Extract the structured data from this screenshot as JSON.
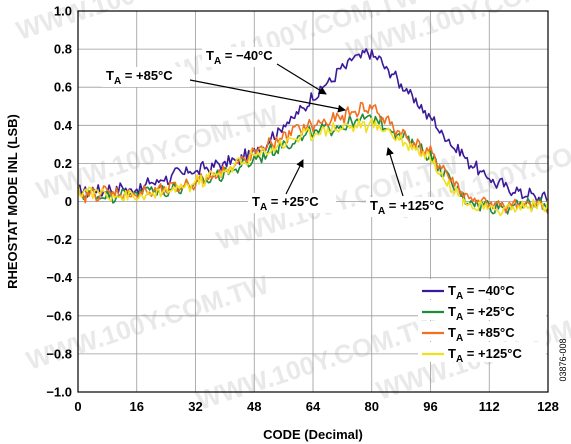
{
  "chart_data": {
    "type": "line",
    "xlabel": "CODE (Decimal)",
    "ylabel": "RHEOSTAT MODE INL (LSB)",
    "xlim": [
      0,
      128
    ],
    "ylim": [
      -1.0,
      1.0
    ],
    "x_ticks": [
      "0",
      "16",
      "32",
      "48",
      "64",
      "80",
      "96",
      "112",
      "128"
    ],
    "y_ticks": [
      "1.0",
      "0.8",
      "0.6",
      "0.4",
      "0.2",
      "0",
      "−0.2",
      "−0.4",
      "−0.6",
      "−0.8",
      "−1.0"
    ],
    "grid": true,
    "legend_position": "bottom-right",
    "watermark": "WWW.100Y.COM.TW",
    "figure_id": "03876-008",
    "x": [
      0,
      4,
      8,
      12,
      16,
      20,
      24,
      28,
      32,
      36,
      40,
      44,
      48,
      52,
      56,
      60,
      64,
      68,
      72,
      76,
      80,
      84,
      88,
      92,
      96,
      100,
      104,
      108,
      112,
      116,
      120,
      124,
      128
    ],
    "series": [
      {
        "color": "#3a1a9a",
        "label_parts": [
          "T",
          "A",
          " = −40°C"
        ],
        "values": [
          0.05,
          0.06,
          0.06,
          0.07,
          0.06,
          0.1,
          0.12,
          0.15,
          0.16,
          0.18,
          0.2,
          0.22,
          0.26,
          0.32,
          0.4,
          0.46,
          0.55,
          0.62,
          0.7,
          0.76,
          0.78,
          0.7,
          0.62,
          0.52,
          0.44,
          0.34,
          0.26,
          0.18,
          0.12,
          0.08,
          0.05,
          0.03,
          0.01
        ]
      },
      {
        "color": "#1e8a3a",
        "label_parts": [
          "T",
          "A",
          " = +25°C"
        ],
        "values": [
          0.04,
          0.04,
          0.03,
          0.04,
          0.05,
          0.06,
          0.06,
          0.08,
          0.09,
          0.12,
          0.15,
          0.18,
          0.22,
          0.26,
          0.3,
          0.33,
          0.36,
          0.38,
          0.4,
          0.42,
          0.44,
          0.4,
          0.34,
          0.3,
          0.24,
          0.14,
          0.04,
          -0.01,
          -0.02,
          -0.03,
          -0.02,
          -0.02,
          -0.02
        ]
      },
      {
        "color": "#f07020",
        "label_parts": [
          "T",
          "A",
          " = +85°C"
        ],
        "values": [
          0.02,
          0.04,
          0.05,
          0.04,
          0.04,
          0.05,
          0.06,
          0.08,
          0.1,
          0.13,
          0.17,
          0.2,
          0.25,
          0.3,
          0.34,
          0.38,
          0.4,
          0.42,
          0.44,
          0.48,
          0.5,
          0.42,
          0.36,
          0.3,
          0.25,
          0.16,
          0.06,
          0.0,
          -0.02,
          -0.02,
          -0.01,
          -0.02,
          -0.03
        ]
      },
      {
        "color": "#f0e020",
        "label_parts": [
          "T",
          "A",
          " = +125°C"
        ],
        "values": [
          0.06,
          0.05,
          0.04,
          0.03,
          0.02,
          0.03,
          0.05,
          0.07,
          0.1,
          0.13,
          0.16,
          0.2,
          0.24,
          0.27,
          0.31,
          0.34,
          0.36,
          0.38,
          0.39,
          0.4,
          0.4,
          0.38,
          0.32,
          0.28,
          0.23,
          0.12,
          0.02,
          -0.03,
          -0.04,
          -0.04,
          -0.03,
          -0.02,
          -0.02
        ]
      }
    ],
    "annotations": [
      {
        "parts": [
          "T",
          "A",
          " = −40°C"
        ]
      },
      {
        "parts": [
          "T",
          "A",
          " = +85°C"
        ]
      },
      {
        "parts": [
          "T",
          "A",
          " = +25°C"
        ]
      },
      {
        "parts": [
          "T",
          "A",
          " = +125°C"
        ]
      }
    ]
  }
}
